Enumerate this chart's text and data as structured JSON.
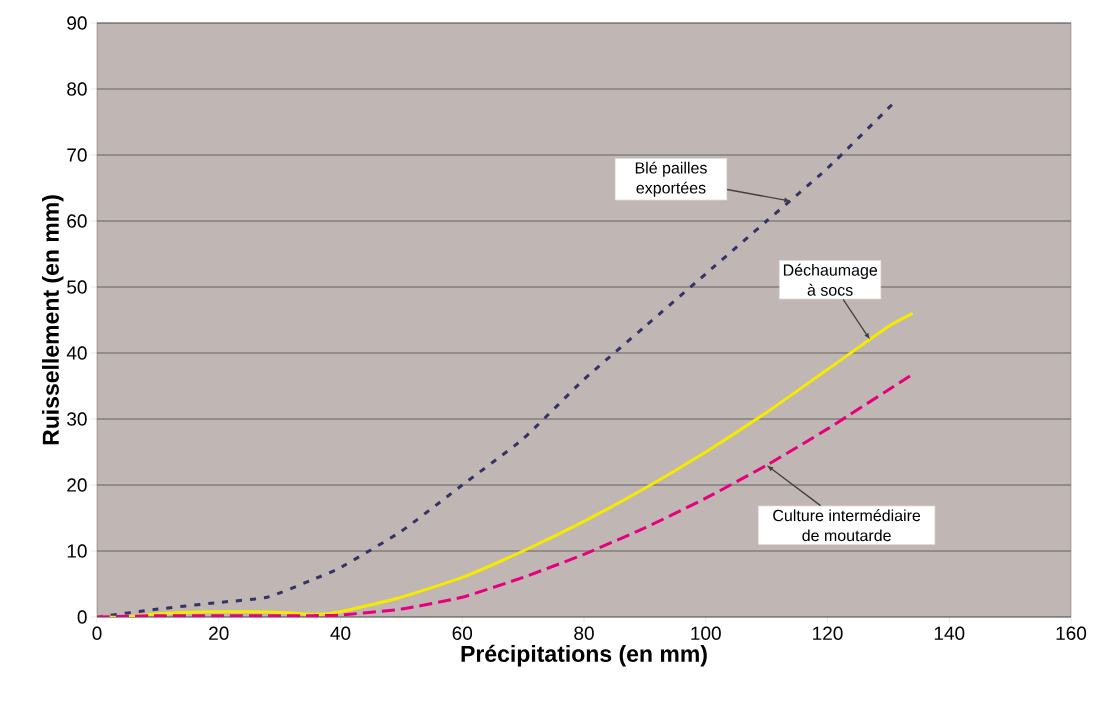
{
  "chart_data": {
    "type": "line",
    "xlabel": "Précipitations (en mm)",
    "ylabel": "Ruissellement (en mm)",
    "xlim": [
      0,
      160
    ],
    "xticks": [
      0,
      20,
      40,
      60,
      80,
      100,
      120,
      140,
      160
    ],
    "ylim": [
      0,
      90
    ],
    "yticks": [
      0,
      10,
      20,
      30,
      40,
      50,
      60,
      70,
      80,
      90
    ],
    "grid": "y",
    "marker": "none",
    "series": [
      {
        "color": "#333366",
        "line_style": "dotted",
        "x": [
          0,
          10,
          20,
          28,
          35,
          40,
          50,
          60,
          70,
          80,
          90,
          100,
          110,
          120,
          131
        ],
        "values": [
          0,
          1.2,
          2.2,
          3,
          5.5,
          7.5,
          13,
          20,
          27,
          36,
          44,
          52,
          60,
          68,
          78
        ]
      },
      {
        "color": "#f5ea00",
        "line_style": "solid",
        "x": [
          0,
          5,
          10,
          20,
          30,
          36,
          40,
          50,
          60,
          70,
          80,
          90,
          100,
          110,
          120,
          130,
          134
        ],
        "values": [
          0,
          0,
          0.5,
          0.8,
          0.7,
          0.4,
          0.8,
          3,
          6,
          10,
          14.5,
          19.5,
          25,
          31,
          37.5,
          44,
          46
        ]
      },
      {
        "color": "#e6007e",
        "line_style": "dashed",
        "x": [
          0,
          10,
          20,
          30,
          35,
          40,
          50,
          60,
          70,
          80,
          90,
          100,
          110,
          120,
          134
        ],
        "values": [
          0,
          0.2,
          0.2,
          0.2,
          0.2,
          0.3,
          1.2,
          3,
          6,
          9.5,
          13.5,
          18,
          23,
          28.5,
          36.8
        ]
      }
    ],
    "annotations": [
      {
        "text": "Blé pailles exportées",
        "x": 114,
        "y": 63
      },
      {
        "text": "Déchaumage à socs",
        "x": 127,
        "y": 42
      },
      {
        "text": "Culture intermédiaire de moutarde",
        "x": 110,
        "y": 23
      }
    ]
  }
}
